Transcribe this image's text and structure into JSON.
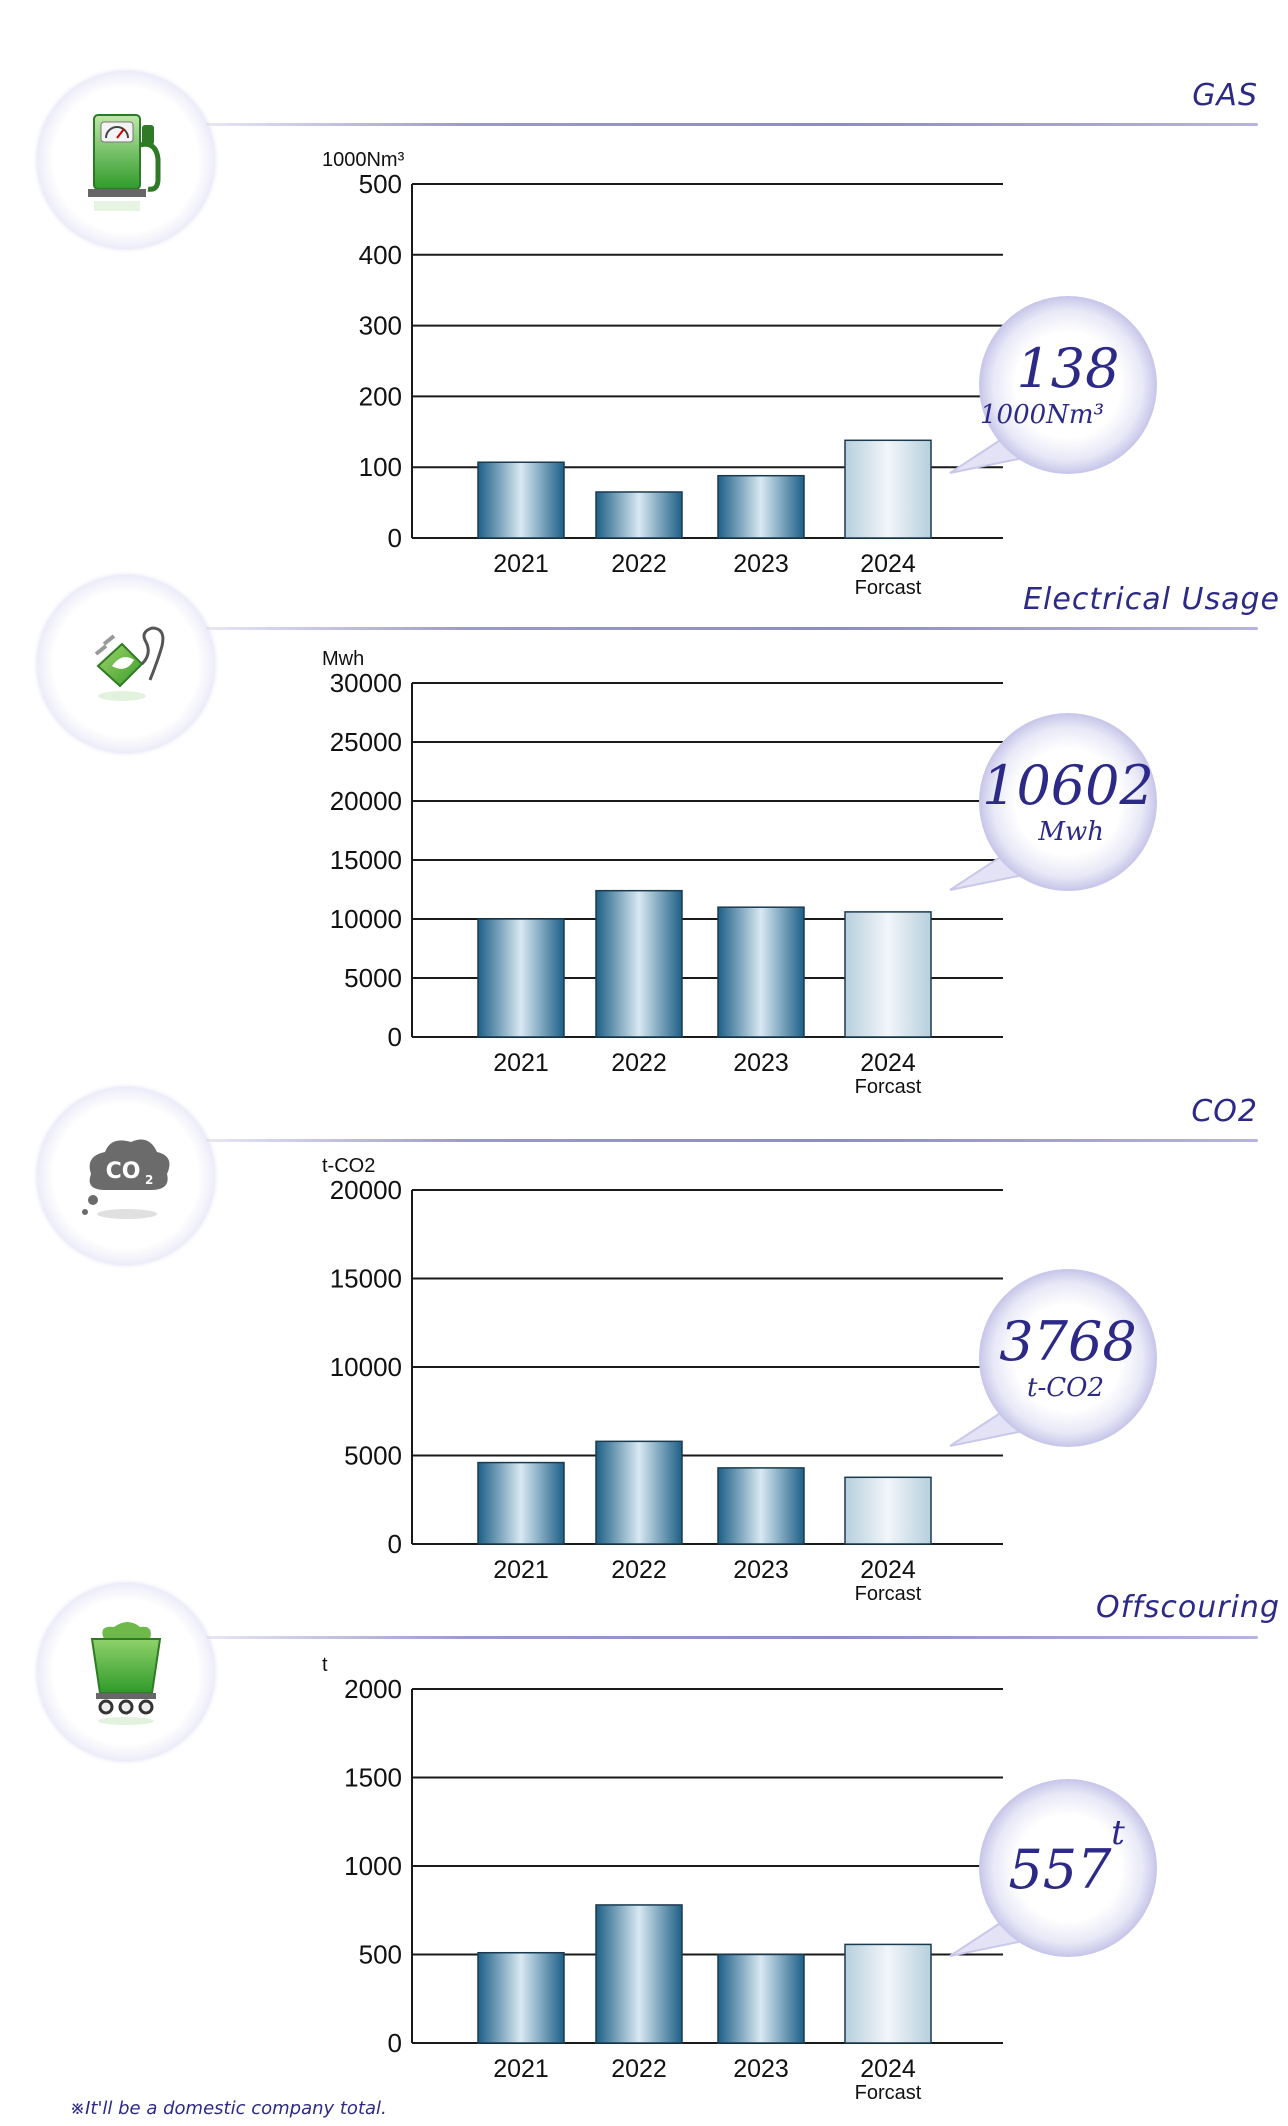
{
  "footnote": "※It'll be a domestic company total.",
  "bar_colors": {
    "actual": "#2f7fa8",
    "forecast": "#c9dce7"
  },
  "title_color": "#2c2a86",
  "chart_data": [
    {
      "type": "bar",
      "title": "GAS",
      "icon": "gas-pump-icon",
      "ylabel": "1000Nm³",
      "ylim": [
        0,
        500
      ],
      "yticks": [
        "500",
        "400",
        "300",
        "200",
        "100",
        "0"
      ],
      "categories": [
        "2021",
        "2022",
        "2023",
        "2024"
      ],
      "values": [
        107,
        65,
        88,
        138
      ],
      "forecast_label": "Forcast",
      "callout": {
        "value": "138",
        "unit": "1000Nm³"
      },
      "grid": true
    },
    {
      "type": "bar",
      "title": "Electrical Usage",
      "icon": "plug-leaf-icon",
      "ylabel": "Mwh",
      "ylim": [
        0,
        30000
      ],
      "yticks": [
        "30000",
        "25000",
        "20000",
        "15000",
        "10000",
        "5000",
        "0"
      ],
      "categories": [
        "2021",
        "2022",
        "2023",
        "2024"
      ],
      "values": [
        10000,
        12400,
        11000,
        10602
      ],
      "forecast_label": "Forcast",
      "callout": {
        "value": "10602",
        "unit": "Mwh"
      },
      "grid": true
    },
    {
      "type": "bar",
      "title": "CO2",
      "icon": "co2-cloud-icon",
      "ylabel": "t-CO2",
      "ylim": [
        0,
        20000
      ],
      "yticks": [
        "20000",
        "15000",
        "10000",
        "5000",
        "0"
      ],
      "categories": [
        "2021",
        "2022",
        "2023",
        "2024"
      ],
      "values": [
        4600,
        5800,
        4300,
        3768
      ],
      "forecast_label": "Forcast",
      "callout": {
        "value": "3768",
        "unit": "t-CO2"
      },
      "grid": true
    },
    {
      "type": "bar",
      "title": "Offscouring",
      "icon": "waste-cart-icon",
      "ylabel": "t",
      "ylim": [
        0,
        2000
      ],
      "yticks": [
        "2000",
        "1500",
        "1000",
        "500",
        "0"
      ],
      "categories": [
        "2021",
        "2022",
        "2023",
        "2024"
      ],
      "values": [
        510,
        780,
        500,
        557
      ],
      "forecast_label": "Forcast",
      "callout": {
        "value": "557",
        "unit": "t"
      },
      "grid": true
    }
  ]
}
